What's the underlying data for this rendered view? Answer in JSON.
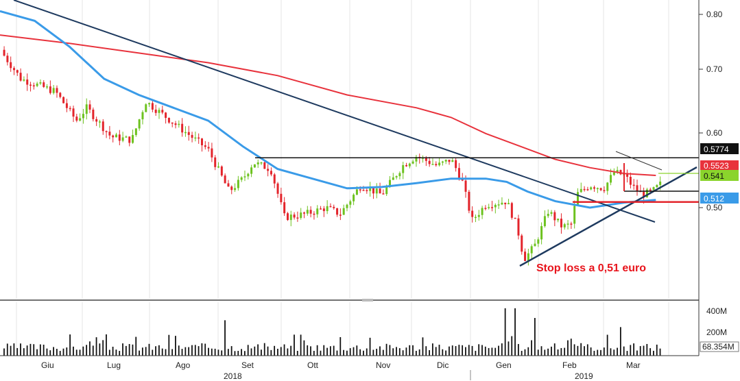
{
  "chart_data": {
    "type": "candlestick",
    "y_axis": {
      "ticks": [
        "0.80",
        "0.70",
        "0.60",
        "0.50"
      ],
      "ylim": [
        0.4,
        0.82
      ],
      "position": "right"
    },
    "x_axis": {
      "months": [
        "Giu",
        "Lug",
        "Ago",
        "Set",
        "Ott",
        "Nov",
        "Dic",
        "Gen",
        "Feb",
        "Mar"
      ],
      "years": [
        "2018",
        "2019"
      ]
    },
    "price_labels": [
      {
        "text": "0.5774",
        "value": 0.5774,
        "color": "#111111"
      },
      {
        "text": "0.5523",
        "value": 0.5523,
        "color": "#e8323c"
      },
      {
        "text": "0.541",
        "value": 0.541,
        "color": "#8ad42c"
      },
      {
        "text": "0.512",
        "value": 0.512,
        "color": "#3a9be8"
      }
    ],
    "annotation": "Stop loss a 0,51 euro",
    "series": [
      {
        "type": "moving-average",
        "color": "#e8323c",
        "points": [
          [
            0,
            0.768
          ],
          [
            0.1,
            0.755
          ],
          [
            0.2,
            0.74
          ],
          [
            0.3,
            0.725
          ],
          [
            0.4,
            0.705
          ],
          [
            0.5,
            0.675
          ],
          [
            0.6,
            0.655
          ],
          [
            0.65,
            0.64
          ],
          [
            0.7,
            0.615
          ],
          [
            0.75,
            0.595
          ],
          [
            0.8,
            0.575
          ],
          [
            0.85,
            0.562
          ],
          [
            0.9,
            0.553
          ],
          [
            0.945,
            0.55
          ]
        ]
      },
      {
        "type": "moving-average",
        "color": "#3a9be8",
        "points": [
          [
            0,
            0.805
          ],
          [
            0.05,
            0.79
          ],
          [
            0.1,
            0.75
          ],
          [
            0.15,
            0.7
          ],
          [
            0.2,
            0.675
          ],
          [
            0.25,
            0.655
          ],
          [
            0.3,
            0.635
          ],
          [
            0.35,
            0.595
          ],
          [
            0.4,
            0.56
          ],
          [
            0.45,
            0.545
          ],
          [
            0.5,
            0.53
          ],
          [
            0.55,
            0.532
          ],
          [
            0.6,
            0.538
          ],
          [
            0.65,
            0.545
          ],
          [
            0.7,
            0.545
          ],
          [
            0.73,
            0.54
          ],
          [
            0.76,
            0.525
          ],
          [
            0.8,
            0.51
          ],
          [
            0.85,
            0.5
          ],
          [
            0.9,
            0.508
          ],
          [
            0.945,
            0.512
          ]
        ]
      }
    ],
    "candles": [],
    "volume": {
      "ticks": [
        "400M",
        "200M"
      ],
      "last_label": "68.354M",
      "ylim": [
        0,
        420
      ]
    }
  }
}
